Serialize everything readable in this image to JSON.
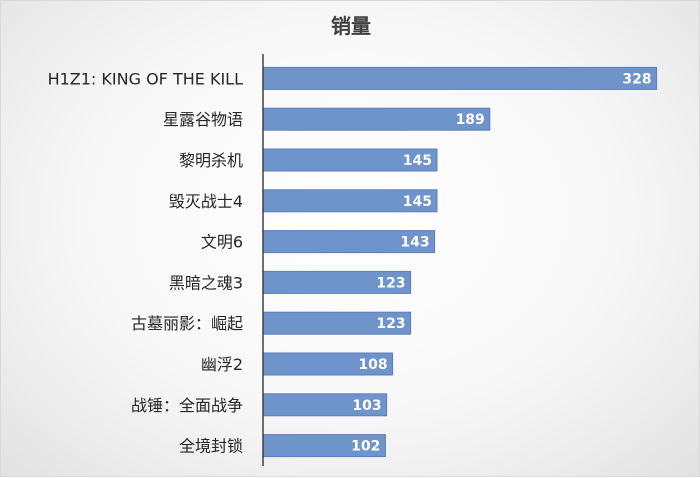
{
  "chart_data": {
    "type": "bar",
    "orientation": "horizontal",
    "title": "销量",
    "categories": [
      "H1Z1: KING OF THE KILL",
      "星露谷物语",
      "黎明杀机",
      "毁灭战士4",
      "文明6",
      "黑暗之魂3",
      "古墓丽影：崛起",
      "幽浮2",
      "战锤：全面战争",
      "全境封锁"
    ],
    "values": [
      328,
      189,
      145,
      145,
      143,
      123,
      123,
      108,
      103,
      102
    ],
    "data_labels": [
      "328",
      "189",
      "145",
      "145",
      "143",
      "123",
      "123",
      "108",
      "103",
      "102"
    ],
    "xlim": [
      0,
      340
    ],
    "grid": false,
    "legend": "none",
    "bar_color": "#6f93cb",
    "bar_border_color": "#5a7fba",
    "axis_color": "#404040"
  }
}
